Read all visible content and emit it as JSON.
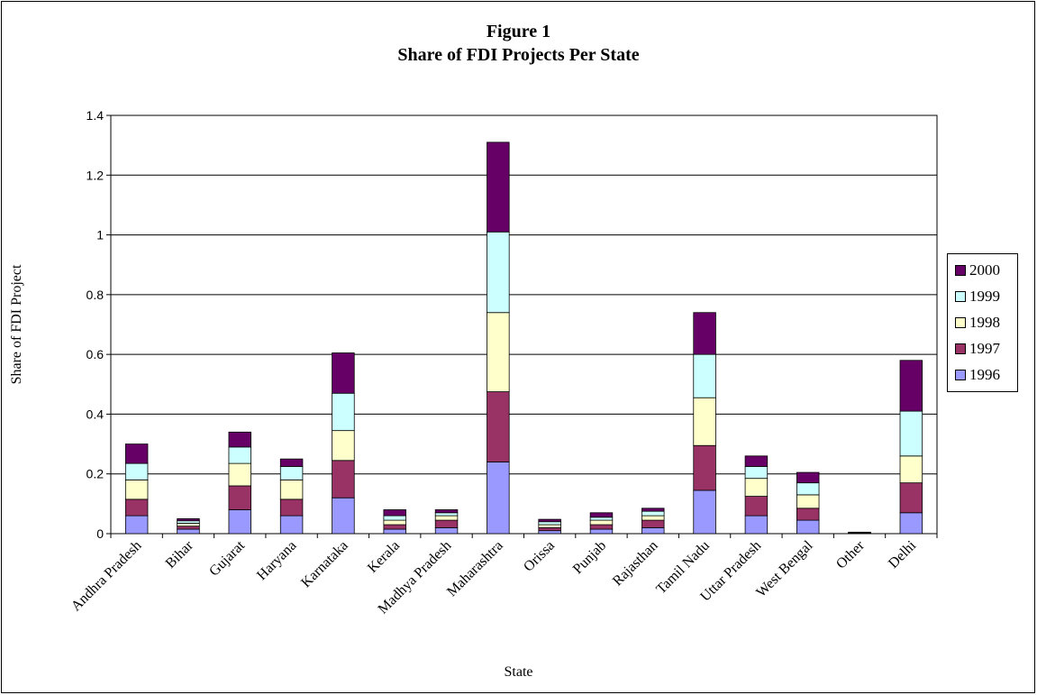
{
  "chart_data": {
    "type": "bar",
    "stacked": true,
    "title": "Figure 1",
    "subtitle": "Share of FDI Projects Per State",
    "xlabel": "State",
    "ylabel": "Share of FDI Project",
    "ylim": [
      0,
      1.4
    ],
    "yticks": [
      "0",
      "0.2",
      "0.4",
      "0.6",
      "0.8",
      "1",
      "1.2",
      "1.4"
    ],
    "grid": true,
    "legend_position": "right",
    "categories": [
      "Andhra Pradesh",
      "Bihar",
      "Gujarat",
      "Haryana",
      "Karnataka",
      "Kerala",
      "Madhya Pradesh",
      "Maharashtra",
      "Orissa",
      "Punjab",
      "Rajasthan",
      "Tamil Nadu",
      "Uttar Pradesh",
      "West Bengal",
      "Other",
      "Delhi"
    ],
    "series": [
      {
        "name": "1996",
        "color": "#9999ff",
        "values": [
          0.06,
          0.015,
          0.08,
          0.06,
          0.12,
          0.015,
          0.02,
          0.24,
          0.01,
          0.015,
          0.02,
          0.145,
          0.06,
          0.045,
          0.001,
          0.07
        ]
      },
      {
        "name": "1997",
        "color": "#993366",
        "values": [
          0.055,
          0.01,
          0.08,
          0.055,
          0.125,
          0.015,
          0.025,
          0.235,
          0.01,
          0.015,
          0.025,
          0.15,
          0.065,
          0.04,
          0.001,
          0.1
        ]
      },
      {
        "name": "1998",
        "color": "#ffffcc",
        "values": [
          0.065,
          0.01,
          0.075,
          0.065,
          0.1,
          0.015,
          0.015,
          0.265,
          0.01,
          0.015,
          0.015,
          0.16,
          0.06,
          0.045,
          0.001,
          0.09
        ]
      },
      {
        "name": "1999",
        "color": "#ccffff",
        "values": [
          0.055,
          0.008,
          0.055,
          0.045,
          0.125,
          0.015,
          0.01,
          0.27,
          0.01,
          0.01,
          0.015,
          0.145,
          0.04,
          0.04,
          0.001,
          0.15
        ]
      },
      {
        "name": "2000",
        "color": "#660066",
        "values": [
          0.065,
          0.007,
          0.05,
          0.025,
          0.135,
          0.02,
          0.01,
          0.3,
          0.008,
          0.015,
          0.01,
          0.14,
          0.035,
          0.035,
          0.001,
          0.17
        ]
      }
    ]
  }
}
